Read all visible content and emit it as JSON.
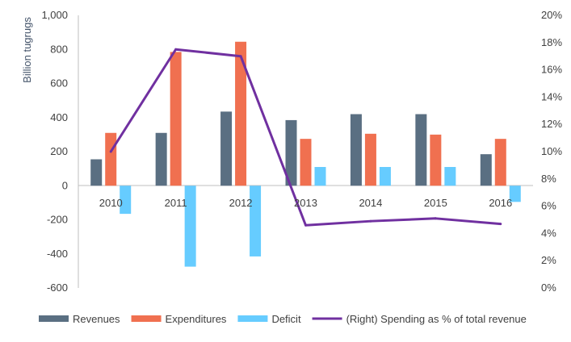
{
  "chart_data": {
    "type": "bar",
    "categories": [
      "2010",
      "2011",
      "2012",
      "2013",
      "2014",
      "2015",
      "2016"
    ],
    "series": [
      {
        "name": "Revenues",
        "type": "bar",
        "axis": "left",
        "color": "#5A6F82",
        "values": [
          155,
          310,
          435,
          385,
          420,
          420,
          185
        ]
      },
      {
        "name": "Expenditures",
        "type": "bar",
        "axis": "left",
        "color": "#F07050",
        "values": [
          310,
          785,
          845,
          275,
          305,
          300,
          275
        ]
      },
      {
        "name": "Deficit",
        "type": "bar",
        "axis": "left",
        "color": "#66CCFF",
        "values": [
          -165,
          -475,
          -415,
          110,
          110,
          110,
          -95
        ]
      },
      {
        "name": "(Right) Spending as % of total revenue",
        "type": "line",
        "axis": "right",
        "color": "#7030A0",
        "values": [
          10.0,
          17.5,
          17.0,
          4.6,
          4.9,
          5.1,
          4.7
        ]
      }
    ],
    "ylabel": "Billion tugrugs",
    "ylim": [
      -600,
      1000
    ],
    "y_ticks": [
      "1,000",
      "800",
      "600",
      "400",
      "200",
      "0",
      "-200",
      "-400",
      "-600"
    ],
    "y2lim": [
      0,
      20
    ],
    "y2_ticks": [
      "20%",
      "18%",
      "16%",
      "14%",
      "12%",
      "10%",
      "8%",
      "6%",
      "4%",
      "2%",
      "0%"
    ],
    "legend_position": "bottom",
    "grid": false
  }
}
